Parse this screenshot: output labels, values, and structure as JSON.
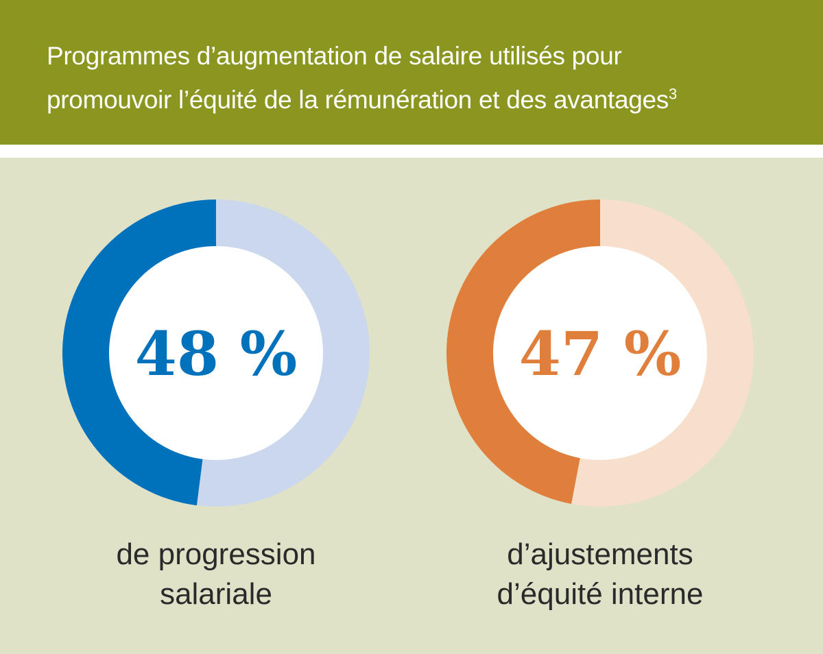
{
  "title": {
    "line1": "Programmes d’augmentation de salaire utilisés pour",
    "line2": "promouvoir l’équité de la rémunération et des avantages",
    "footnote": "3"
  },
  "chart_data": [
    {
      "type": "pie",
      "variant": "donut",
      "value": 48,
      "value_label": "48 %",
      "label_line1": "de progression",
      "label_line2": "salariale",
      "colors": {
        "filled": "#0072bc",
        "remainder": "#cbd7ed",
        "text": "#0072bc"
      }
    },
    {
      "type": "pie",
      "variant": "donut",
      "value": 47,
      "value_label": "47 %",
      "label_line1": "d’ajustements",
      "label_line2": "d’équité interne",
      "colors": {
        "filled": "#e07f3c",
        "remainder": "#f7dfcc",
        "text": "#e07f3c"
      }
    }
  ]
}
